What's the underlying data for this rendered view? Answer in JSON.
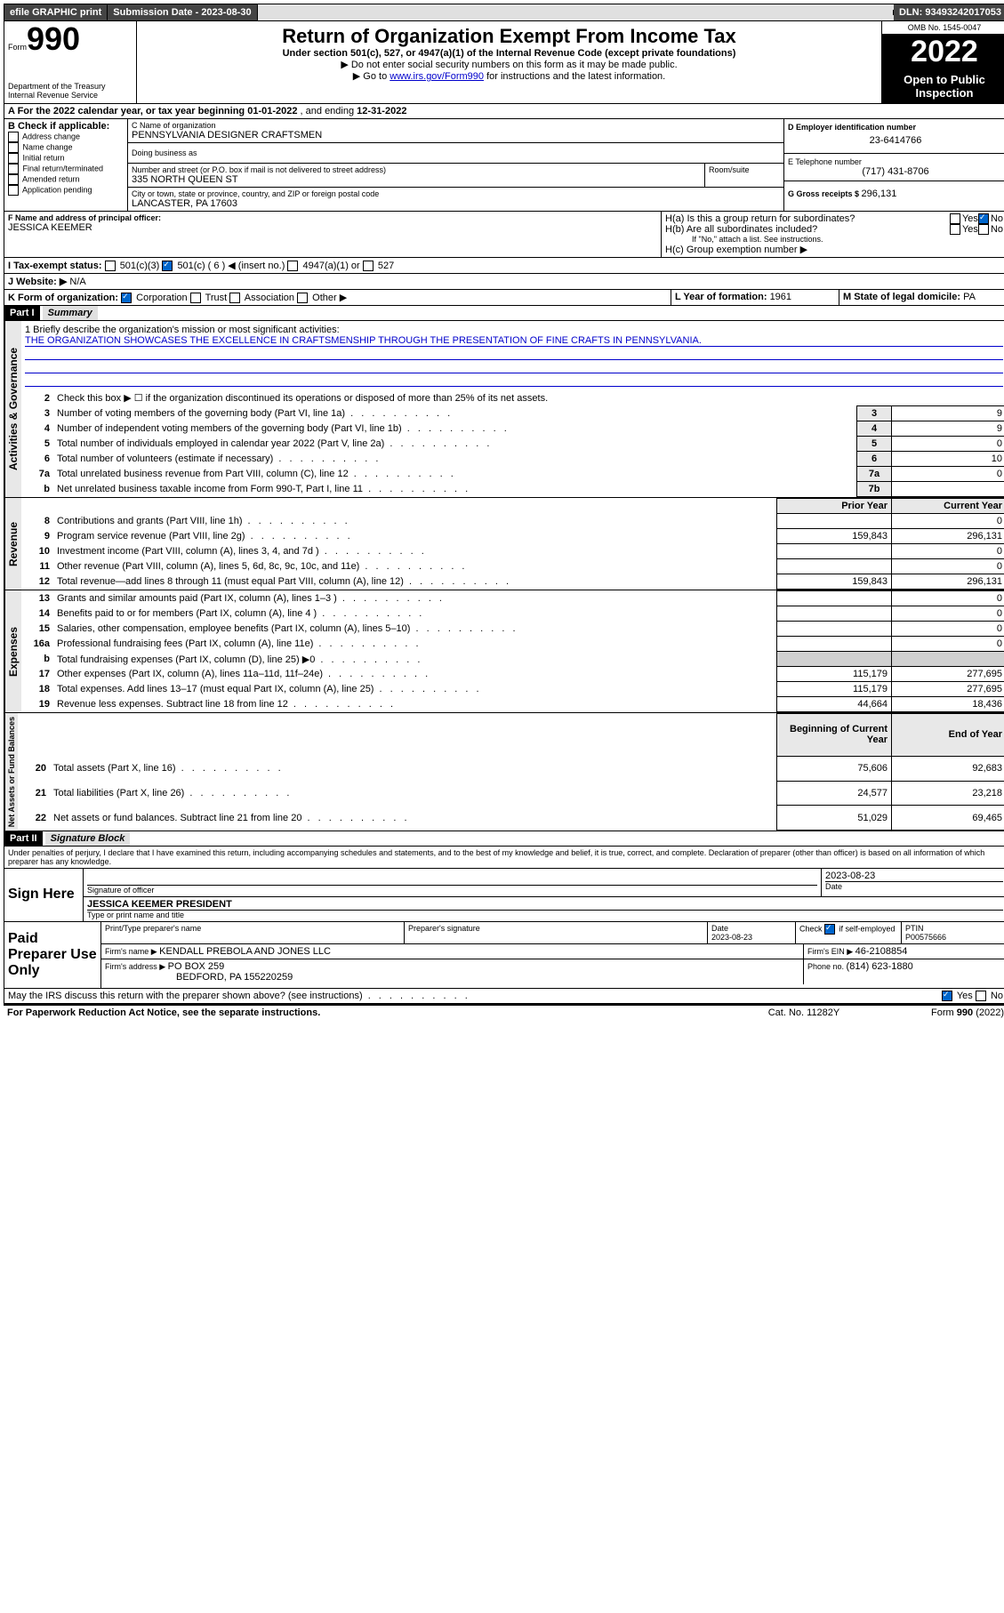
{
  "topbar": {
    "efile": "efile GRAPHIC print",
    "sub_label": "Submission Date - 2023-08-30",
    "dln": "DLN: 93493242017053"
  },
  "header": {
    "form_small": "Form",
    "form_big": "990",
    "title": "Return of Organization Exempt From Income Tax",
    "subtitle": "Under section 501(c), 527, or 4947(a)(1) of the Internal Revenue Code (except private foundations)",
    "note1": "▶ Do not enter social security numbers on this form as it may be made public.",
    "note2_pre": "▶ Go to ",
    "note2_link": "www.irs.gov/Form990",
    "note2_post": " for instructions and the latest information.",
    "omb": "OMB No. 1545-0047",
    "year": "2022",
    "open": "Open to Public Inspection",
    "dept": "Department of the Treasury",
    "irs": "Internal Revenue Service"
  },
  "period": {
    "label_a": "A For the 2022 calendar year, or tax year beginning ",
    "begin": "01-01-2022",
    "mid": " , and ending ",
    "end": "12-31-2022"
  },
  "boxB": {
    "label": "B Check if applicable:",
    "opts": [
      "Address change",
      "Name change",
      "Initial return",
      "Final return/terminated",
      "Amended return",
      "Application pending"
    ]
  },
  "boxC": {
    "label": "C Name of organization",
    "name": "PENNSYLVANIA DESIGNER CRAFTSMEN",
    "dba": "Doing business as",
    "addr_label": "Number and street (or P.O. box if mail is not delivered to street address)",
    "room": "Room/suite",
    "street": "335 NORTH QUEEN ST",
    "city_label": "City or town, state or province, country, and ZIP or foreign postal code",
    "city": "LANCASTER, PA  17603"
  },
  "boxD": {
    "label": "D Employer identification number",
    "val": "23-6414766"
  },
  "boxE": {
    "label": "E Telephone number",
    "val": "(717) 431-8706"
  },
  "boxG": {
    "label": "G Gross receipts $ ",
    "val": "296,131"
  },
  "boxF": {
    "label": "F Name and address of principal officer:",
    "name": "JESSICA KEEMER"
  },
  "boxH": {
    "a": "H(a)  Is this a group return for subordinates?",
    "b": "H(b)  Are all subordinates included?",
    "b_note": "If \"No,\" attach a list. See instructions.",
    "c": "H(c)  Group exemption number ▶",
    "yes": "Yes",
    "no": "No"
  },
  "boxI": {
    "label": "I    Tax-exempt status:",
    "o1": "501(c)(3)",
    "o2": "501(c) ( 6 ) ◀ (insert no.)",
    "o3": "4947(a)(1) or",
    "o4": "527"
  },
  "boxJ": {
    "label": "J    Website: ▶",
    "val": "N/A"
  },
  "boxK": {
    "label": "K Form of organization:",
    "o1": "Corporation",
    "o2": "Trust",
    "o3": "Association",
    "o4": "Other ▶"
  },
  "boxL": {
    "label": "L Year of formation: ",
    "val": "1961"
  },
  "boxM": {
    "label": "M State of legal domicile: ",
    "val": "PA"
  },
  "part1": {
    "hdr": "Part I",
    "title": "Summary"
  },
  "mission": {
    "q": "1   Briefly describe the organization's mission or most significant activities:",
    "text": "THE ORGANIZATION SHOWCASES THE EXCELLENCE IN CRAFTSMENSHIP THROUGH THE PRESENTATION OF FINE CRAFTS IN PENNSYLVANIA."
  },
  "gov_lines": [
    {
      "n": "2",
      "t": "Check this box ▶ ☐  if the organization discontinued its operations or disposed of more than 25% of its net assets.",
      "k": "",
      "v": ""
    },
    {
      "n": "3",
      "t": "Number of voting members of the governing body (Part VI, line 1a)",
      "k": "3",
      "v": "9"
    },
    {
      "n": "4",
      "t": "Number of independent voting members of the governing body (Part VI, line 1b)",
      "k": "4",
      "v": "9"
    },
    {
      "n": "5",
      "t": "Total number of individuals employed in calendar year 2022 (Part V, line 2a)",
      "k": "5",
      "v": "0"
    },
    {
      "n": "6",
      "t": "Total number of volunteers (estimate if necessary)",
      "k": "6",
      "v": "10"
    },
    {
      "n": "7a",
      "t": "Total unrelated business revenue from Part VIII, column (C), line 12",
      "k": "7a",
      "v": "0"
    },
    {
      "n": "b",
      "t": "Net unrelated business taxable income from Form 990-T, Part I, line 11",
      "k": "7b",
      "v": ""
    }
  ],
  "col_headers": {
    "prior": "Prior Year",
    "current": "Current Year",
    "beg": "Beginning of Current Year",
    "end": "End of Year"
  },
  "rev_lines": [
    {
      "n": "8",
      "t": "Contributions and grants (Part VIII, line 1h)",
      "p": "",
      "c": "0"
    },
    {
      "n": "9",
      "t": "Program service revenue (Part VIII, line 2g)",
      "p": "159,843",
      "c": "296,131"
    },
    {
      "n": "10",
      "t": "Investment income (Part VIII, column (A), lines 3, 4, and 7d )",
      "p": "",
      "c": "0"
    },
    {
      "n": "11",
      "t": "Other revenue (Part VIII, column (A), lines 5, 6d, 8c, 9c, 10c, and 11e)",
      "p": "",
      "c": "0"
    },
    {
      "n": "12",
      "t": "Total revenue—add lines 8 through 11 (must equal Part VIII, column (A), line 12)",
      "p": "159,843",
      "c": "296,131"
    }
  ],
  "exp_lines": [
    {
      "n": "13",
      "t": "Grants and similar amounts paid (Part IX, column (A), lines 1–3 )",
      "p": "",
      "c": "0"
    },
    {
      "n": "14",
      "t": "Benefits paid to or for members (Part IX, column (A), line 4 )",
      "p": "",
      "c": "0"
    },
    {
      "n": "15",
      "t": "Salaries, other compensation, employee benefits (Part IX, column (A), lines 5–10)",
      "p": "",
      "c": "0"
    },
    {
      "n": "16a",
      "t": "Professional fundraising fees (Part IX, column (A), line 11e)",
      "p": "",
      "c": "0"
    },
    {
      "n": "b",
      "t": "Total fundraising expenses (Part IX, column (D), line 25) ▶0",
      "p": "shaded",
      "c": "shaded"
    },
    {
      "n": "17",
      "t": "Other expenses (Part IX, column (A), lines 11a–11d, 11f–24e)",
      "p": "115,179",
      "c": "277,695"
    },
    {
      "n": "18",
      "t": "Total expenses. Add lines 13–17 (must equal Part IX, column (A), line 25)",
      "p": "115,179",
      "c": "277,695"
    },
    {
      "n": "19",
      "t": "Revenue less expenses. Subtract line 18 from line 12",
      "p": "44,664",
      "c": "18,436"
    }
  ],
  "net_lines": [
    {
      "n": "20",
      "t": "Total assets (Part X, line 16)",
      "p": "75,606",
      "c": "92,683"
    },
    {
      "n": "21",
      "t": "Total liabilities (Part X, line 26)",
      "p": "24,577",
      "c": "23,218"
    },
    {
      "n": "22",
      "t": "Net assets or fund balances. Subtract line 21 from line 20",
      "p": "51,029",
      "c": "69,465"
    }
  ],
  "vert": {
    "gov": "Activities & Governance",
    "rev": "Revenue",
    "exp": "Expenses",
    "net": "Net Assets or Fund Balances"
  },
  "part2": {
    "hdr": "Part II",
    "title": "Signature Block"
  },
  "penalty": "Under penalties of perjury, I declare that I have examined this return, including accompanying schedules and statements, and to the best of my knowledge and belief, it is true, correct, and complete. Declaration of preparer (other than officer) is based on all information of which preparer has any knowledge.",
  "sign": {
    "here": "Sign Here",
    "sig_label": "Signature of officer",
    "date": "2023-08-23",
    "date_label": "Date",
    "name": "JESSICA KEEMER  PRESIDENT",
    "name_label": "Type or print name and title"
  },
  "paid": {
    "label": "Paid Preparer Use Only",
    "pt_name": "Print/Type preparer's name",
    "pt_sig": "Preparer's signature",
    "pt_date_label": "Date",
    "pt_date": "2023-08-23",
    "check_label": "Check ",
    "check_if": " if self-employed",
    "ptin_label": "PTIN",
    "ptin": "P00575666",
    "firm_name_label": "Firm's name    ▶ ",
    "firm_name": "KENDALL PREBOLA AND JONES LLC",
    "firm_ein_label": "Firm's EIN ▶ ",
    "firm_ein": "46-2108854",
    "firm_addr_label": "Firm's address ▶ ",
    "firm_addr1": "PO BOX 259",
    "firm_addr2": "BEDFORD, PA  155220259",
    "phone_label": "Phone no. ",
    "phone": "(814) 623-1880"
  },
  "footer": {
    "discuss": "May the IRS discuss this return with the preparer shown above? (see instructions)",
    "yes": "Yes",
    "no": "No",
    "pra": "For Paperwork Reduction Act Notice, see the separate instructions.",
    "cat": "Cat. No. 11282Y",
    "form": "Form 990 (2022)"
  }
}
